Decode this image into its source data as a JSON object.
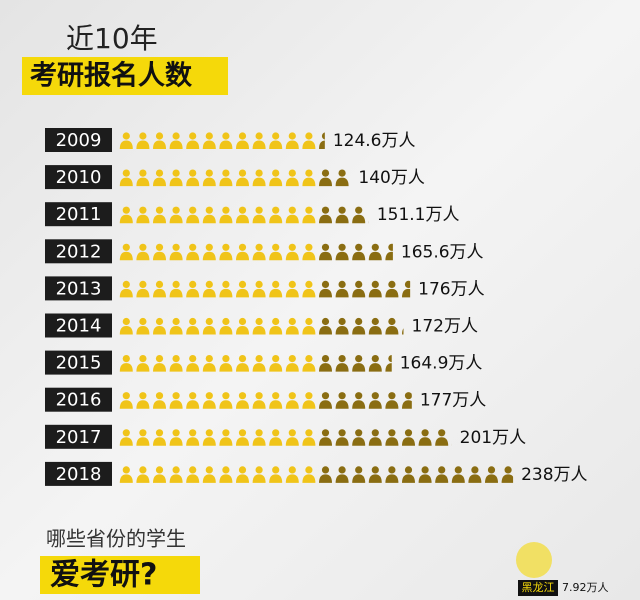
{
  "chart_data": {
    "type": "pictograph",
    "title": "近10年",
    "subtitle": "考研报名人数",
    "categories": [
      "2009",
      "2010",
      "2011",
      "2012",
      "2013",
      "2014",
      "2015",
      "2016",
      "2017",
      "2018"
    ],
    "values": [
      124.6,
      140,
      151.1,
      165.6,
      176,
      172,
      164.9,
      177,
      201,
      238
    ],
    "value_labels": [
      "124.6万人",
      "140万人",
      "151.1万人",
      "165.6万人",
      "176万人",
      "172万人",
      "164.9万人",
      "177万人",
      "201万人",
      "238万人"
    ],
    "color": "#f0c419",
    "color2": "#8a6d12"
  },
  "section": {
    "heading": "哪些省份的学生",
    "title": "爱考研?",
    "province": "黑龙江",
    "province_value": "7.92万人"
  }
}
